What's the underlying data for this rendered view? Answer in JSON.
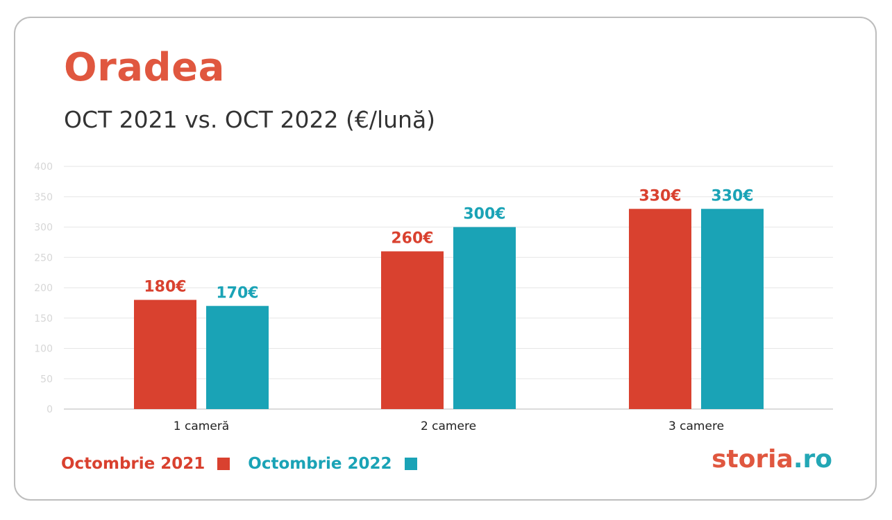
{
  "title": "Oradea",
  "subtitle": "OCT 2021 vs. OCT 2022 (€/lună)",
  "brand": {
    "main": "storia",
    "tld": ".ro"
  },
  "colors": {
    "series_2021": "#d9412f",
    "series_2022": "#1aa3b6",
    "title": "#e0573f",
    "grid": "#e6e6e6",
    "axis_text": "#d6d6d6"
  },
  "chart_data": {
    "type": "bar",
    "categories": [
      "1 cameră",
      "2 camere",
      "3 camere"
    ],
    "series": [
      {
        "name": "Octombrie 2021",
        "values": [
          180,
          260,
          330
        ],
        "labels": [
          "180€",
          "260€",
          "330€"
        ]
      },
      {
        "name": "Octombrie 2022",
        "values": [
          170,
          300,
          330
        ],
        "labels": [
          "170€",
          "300€",
          "330€"
        ]
      }
    ],
    "title": "Oradea",
    "subtitle": "OCT 2021 vs. OCT 2022 (€/lună)",
    "ylim": [
      0,
      400
    ],
    "yticks": [
      0,
      50,
      100,
      150,
      200,
      250,
      300,
      350,
      400
    ],
    "grid": true,
    "legend": "bottom-left"
  }
}
